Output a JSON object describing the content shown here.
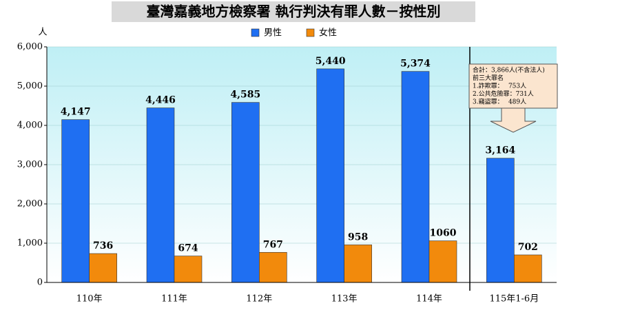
{
  "chart_data": {
    "type": "bar",
    "title": "臺灣嘉義地方檢察署 執行判決有罪人數－按性別",
    "y_label": "人",
    "categories": [
      "110年",
      "111年",
      "112年",
      "113年",
      "114年",
      "115年1-6月"
    ],
    "series": [
      {
        "name": "男性",
        "color": "#1f6ff2",
        "values": [
          4147,
          4446,
          4585,
          5440,
          5374,
          3164
        ],
        "value_labels": [
          "4,147",
          "4,446",
          "4,585",
          "5,440",
          "5,374",
          "3,164"
        ]
      },
      {
        "name": "女性",
        "color": "#f28a0c",
        "values": [
          736,
          674,
          767,
          958,
          1060,
          702
        ]
      }
    ],
    "ylim": [
      0,
      6000
    ],
    "yticks": [
      0,
      {
        "value": 1000,
        "label": "1,000"
      },
      {
        "value": 2000,
        "label": "2,000"
      },
      {
        "value": 3000,
        "label": "3,000"
      },
      {
        "value": 4000,
        "label": "4,000"
      },
      {
        "value": 5000,
        "label": "5,000"
      },
      {
        "value": 6000,
        "label": "6,000"
      }
    ],
    "grid": true,
    "annotation": [
      "合計：3,866人(不含法人)",
      "前三大罪名",
      "1.詐欺罪：　 753人",
      "2.公共危險罪：731人",
      "3.竊盜罪：　 489人"
    ]
  }
}
